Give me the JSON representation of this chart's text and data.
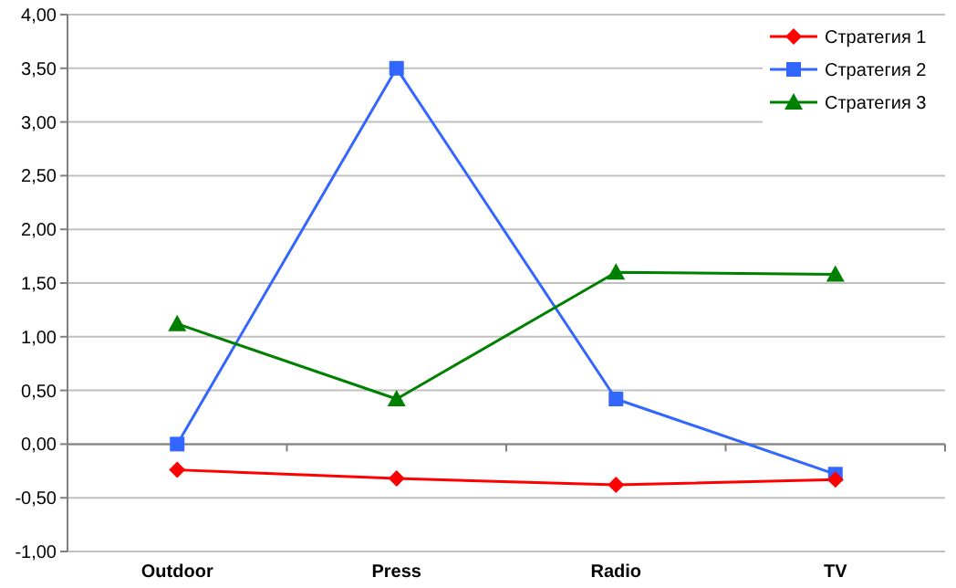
{
  "chart_data": {
    "type": "line",
    "categories": [
      "Outdoor",
      "Press",
      "Radio",
      "TV"
    ],
    "series": [
      {
        "name": "Стратегия 1",
        "color": "#ff0000",
        "marker": "diamond",
        "values": [
          -0.24,
          -0.32,
          -0.38,
          -0.33
        ]
      },
      {
        "name": "Стратегия 2",
        "color": "#3366ff",
        "marker": "square",
        "values": [
          0.0,
          3.5,
          0.42,
          -0.28
        ]
      },
      {
        "name": "Стратегия 3",
        "color": "#008000",
        "marker": "triangle",
        "values": [
          1.12,
          0.42,
          1.6,
          1.58
        ]
      }
    ],
    "ylim": [
      -1,
      4
    ],
    "yticks": [
      {
        "value": -1,
        "label": "-1,00"
      },
      {
        "value": -0.5,
        "label": "-0,50"
      },
      {
        "value": 0,
        "label": "0,00"
      },
      {
        "value": 0.5,
        "label": "0,50"
      },
      {
        "value": 1,
        "label": "1,00"
      },
      {
        "value": 1.5,
        "label": "1,50"
      },
      {
        "value": 2,
        "label": "2,00"
      },
      {
        "value": 2.5,
        "label": "2,50"
      },
      {
        "value": 3,
        "label": "3,00"
      },
      {
        "value": 3.5,
        "label": "3,50"
      },
      {
        "value": 4,
        "label": "4,00"
      }
    ],
    "grid": "y",
    "legend": "top right"
  }
}
